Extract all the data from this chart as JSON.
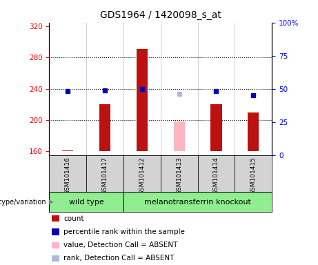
{
  "title": "GDS1964 / 1420098_s_at",
  "samples": [
    "GSM101416",
    "GSM101417",
    "GSM101412",
    "GSM101413",
    "GSM101414",
    "GSM101415"
  ],
  "counts": [
    161,
    220,
    291,
    198,
    220,
    210
  ],
  "percentiles": [
    48,
    49,
    50,
    46,
    48,
    45
  ],
  "absent": [
    false,
    false,
    false,
    true,
    false,
    false
  ],
  "ylim_left": [
    155,
    325
  ],
  "ylim_right": [
    0,
    100
  ],
  "yticks_left": [
    160,
    200,
    240,
    280,
    320
  ],
  "yticks_right": [
    0,
    25,
    50,
    75,
    100
  ],
  "bar_color_present": "#bb1111",
  "bar_color_absent": "#ffb6c1",
  "marker_color_present": "#0000bb",
  "marker_color_absent": "#b0b8d8",
  "bar_bottom": 160,
  "bar_width": 0.3,
  "plot_bg": "#ffffff",
  "sample_bg": "#d3d3d3",
  "group_bg": "#90ee90",
  "title_fontsize": 10,
  "tick_fontsize": 7.5,
  "legend_fontsize": 7.5,
  "sample_fontsize": 6.5,
  "group_fontsize": 8,
  "groups": [
    {
      "label": "wild type",
      "start": 0,
      "end": 1
    },
    {
      "label": "melanotransferrin knockout",
      "start": 2,
      "end": 5
    }
  ],
  "legend_items": [
    {
      "color": "#bb1111",
      "label": "count"
    },
    {
      "color": "#0000bb",
      "label": "percentile rank within the sample"
    },
    {
      "color": "#ffb6c1",
      "label": "value, Detection Call = ABSENT"
    },
    {
      "color": "#b0b8d8",
      "label": "rank, Detection Call = ABSENT"
    }
  ]
}
